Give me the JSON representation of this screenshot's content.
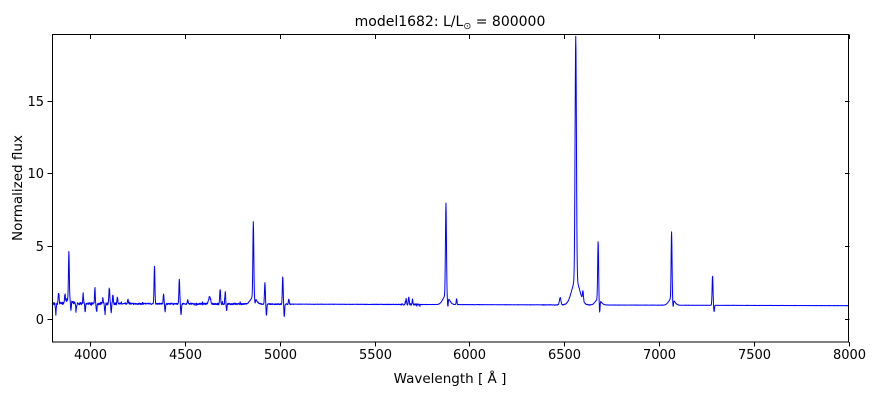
{
  "figure": {
    "title_prefix": "model1682: L/L",
    "title_subscript": "⊙",
    "title_suffix": " = 800000",
    "background_color": "#ffffff",
    "axis_color": "#000000",
    "line_color": "#0000ff"
  },
  "chart_data": {
    "type": "line",
    "title": "model1682: L/L⊙ = 800000",
    "xlabel": "Wavelength [ Å ]",
    "ylabel": "Normalized flux",
    "xlim": [
      3800,
      8000
    ],
    "ylim": [
      -1.6,
      19.6
    ],
    "xticks": [
      4000,
      4500,
      5000,
      5500,
      6000,
      6500,
      7000,
      7500,
      8000
    ],
    "yticks": [
      0,
      5,
      10,
      15
    ],
    "grid": false,
    "legend": "none",
    "continuum_flux": {
      "at_3800": 1.05,
      "at_8000": 0.9
    },
    "emission_lines": {
      "columns": [
        "wavelength_angstrom",
        "peak_flux",
        "sigma_angstrom"
      ],
      "rows": [
        [
          3835,
          1.75,
          2.2
        ],
        [
          3868,
          1.5,
          2.0
        ],
        [
          3889,
          4.25,
          2.2
        ],
        [
          3964,
          1.65,
          2.0
        ],
        [
          4026,
          1.95,
          2.0
        ],
        [
          4068,
          1.45,
          2.0
        ],
        [
          4102,
          2.05,
          2.2
        ],
        [
          4121,
          1.6,
          2.0
        ],
        [
          4144,
          1.4,
          2.0
        ],
        [
          4200,
          1.3,
          2.0
        ],
        [
          4340,
          3.55,
          2.2
        ],
        [
          4388,
          1.7,
          2.0
        ],
        [
          4471,
          2.7,
          2.2
        ],
        [
          4515,
          1.3,
          2.0
        ],
        [
          4630,
          1.5,
          5.0
        ],
        [
          4686,
          2.05,
          2.2
        ],
        [
          4713,
          1.85,
          2.0
        ],
        [
          4861,
          6.15,
          2.4
        ],
        [
          4922,
          2.5,
          2.2
        ],
        [
          5016,
          2.9,
          2.2
        ],
        [
          5048,
          1.35,
          2.0
        ],
        [
          5666,
          1.4,
          2.0
        ],
        [
          5680,
          1.55,
          2.0
        ],
        [
          5700,
          1.35,
          2.0
        ],
        [
          5876,
          7.35,
          2.6
        ],
        [
          5932,
          1.4,
          2.0
        ],
        [
          6478,
          1.5,
          4.0
        ],
        [
          6560,
          17.8,
          3.5
        ],
        [
          6598,
          1.65,
          2.5
        ],
        [
          6678,
          5.0,
          2.4
        ],
        [
          7065,
          5.6,
          2.4
        ],
        [
          7281,
          3.0,
          2.4
        ]
      ]
    },
    "absorption_features": {
      "columns": [
        "wavelength_angstrom",
        "min_flux",
        "sigma_angstrom"
      ],
      "rows": [
        [
          3820,
          0.35,
          2.0
        ],
        [
          3900,
          0.3,
          2.0
        ],
        [
          3927,
          0.5,
          2.0
        ],
        [
          3975,
          0.4,
          2.0
        ],
        [
          4035,
          0.4,
          2.0
        ],
        [
          4079,
          0.3,
          2.0
        ],
        [
          4112,
          0.45,
          2.0
        ],
        [
          4396,
          0.45,
          2.0
        ],
        [
          4480,
          0.25,
          2.0
        ],
        [
          4720,
          0.5,
          2.0
        ],
        [
          4870,
          0.65,
          2.0
        ],
        [
          4930,
          0.2,
          2.0
        ],
        [
          5024,
          0.12,
          2.0
        ],
        [
          5886,
          0.35,
          2.0
        ],
        [
          6686,
          0.15,
          2.0
        ],
        [
          7073,
          0.5,
          2.0
        ],
        [
          7289,
          0.55,
          2.0
        ]
      ]
    },
    "noise_regions": {
      "columns": [
        "from_angstrom",
        "to_angstrom",
        "amplitude_flux"
      ],
      "rows": [
        [
          3800,
          4150,
          0.09
        ],
        [
          4150,
          4560,
          0.045
        ],
        [
          4560,
          4800,
          0.055
        ],
        [
          4800,
          5060,
          0.035
        ],
        [
          5060,
          5450,
          0.012
        ],
        [
          5450,
          5640,
          0.018
        ],
        [
          5640,
          5740,
          0.05
        ],
        [
          5740,
          6380,
          0.01
        ],
        [
          6380,
          6640,
          0.022
        ],
        [
          6640,
          7000,
          0.01
        ],
        [
          7000,
          8000,
          0.008
        ]
      ]
    }
  }
}
